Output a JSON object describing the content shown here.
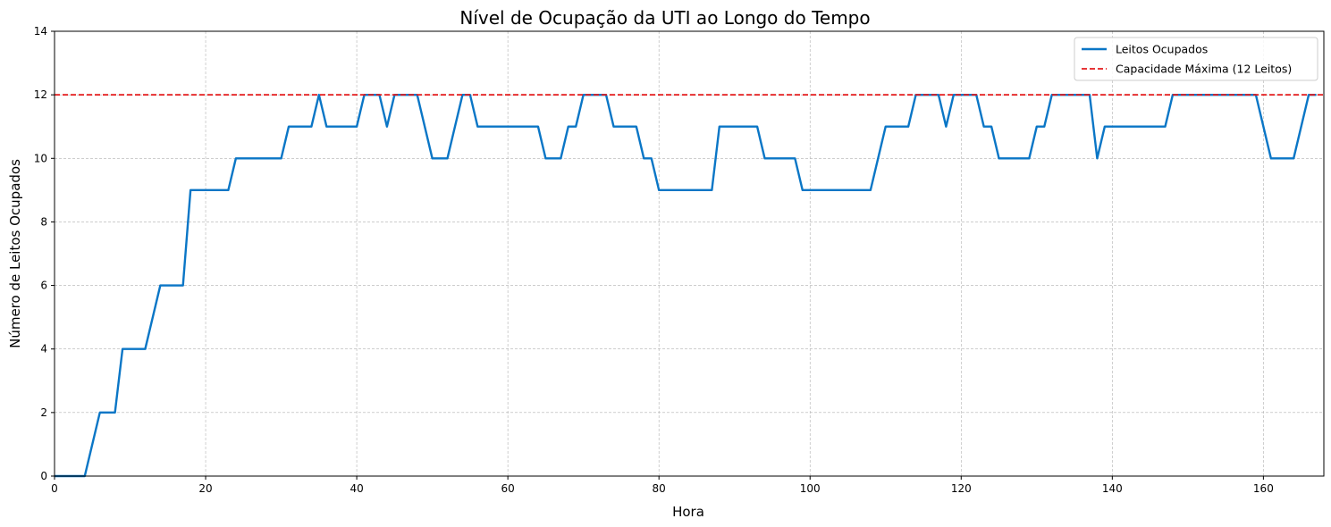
{
  "chart_data": {
    "type": "line",
    "title": "Nível de Ocupação da UTI ao Longo do Tempo",
    "xlabel": "Hora",
    "ylabel": "Número de Leitos Ocupados",
    "xlim": [
      0,
      168
    ],
    "ylim": [
      0,
      14
    ],
    "xticks": [
      0,
      20,
      40,
      60,
      80,
      100,
      120,
      140,
      160
    ],
    "yticks": [
      0,
      2,
      4,
      6,
      8,
      10,
      12,
      14
    ],
    "grid": true,
    "legend_position": "top-right",
    "series": [
      {
        "name": "Leitos Ocupados",
        "color": "#0a76c6",
        "style": "solid",
        "x": [
          0,
          4,
          6,
          8,
          9,
          12,
          14,
          17,
          18,
          23,
          24,
          30,
          31,
          34,
          35,
          36,
          40,
          41,
          43,
          44,
          45,
          48,
          50,
          52,
          54,
          55,
          56,
          64,
          65,
          67,
          68,
          69,
          70,
          73,
          74,
          77,
          78,
          79,
          80,
          87,
          88,
          93,
          94,
          98,
          99,
          108,
          110,
          113,
          114,
          117,
          118,
          119,
          122,
          123,
          124,
          125,
          129,
          130,
          131,
          132,
          137,
          138,
          139,
          147,
          148,
          159,
          161,
          164,
          166,
          167
        ],
        "y": [
          0,
          0,
          2,
          2,
          4,
          4,
          6,
          6,
          9,
          9,
          10,
          10,
          11,
          11,
          12,
          11,
          11,
          12,
          12,
          11,
          12,
          12,
          10,
          10,
          12,
          12,
          11,
          11,
          10,
          10,
          11,
          11,
          12,
          12,
          11,
          11,
          10,
          10,
          9,
          9,
          11,
          11,
          10,
          10,
          9,
          9,
          11,
          11,
          12,
          12,
          11,
          12,
          12,
          11,
          11,
          10,
          10,
          11,
          11,
          12,
          12,
          10,
          11,
          11,
          12,
          12,
          10,
          10,
          12,
          12
        ]
      },
      {
        "name": "Capacidade Máxima (12 Leitos)",
        "color": "#e41a1c",
        "style": "dashed",
        "constant_y": 12
      }
    ]
  }
}
